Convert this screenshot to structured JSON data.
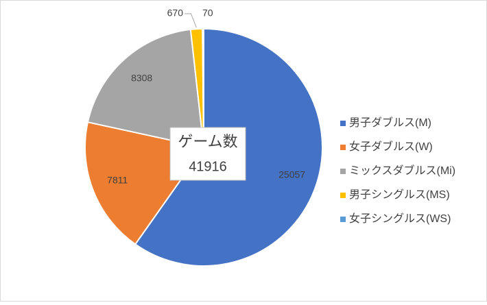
{
  "chart_data": {
    "type": "pie",
    "categories": [
      "男子ダブルス(M)",
      "女子ダブルス(W)",
      "ミックスダブルス(Mi)",
      "男子シングルス(MS)",
      "女子シングルス(WS)"
    ],
    "values": [
      25057,
      7811,
      8308,
      670,
      70
    ],
    "colors": [
      "#4472c4",
      "#ed7d31",
      "#a5a5a5",
      "#ffc000",
      "#5b9bd5"
    ],
    "center_title": "ゲーム数",
    "center_value": 41916,
    "legend": "right"
  }
}
